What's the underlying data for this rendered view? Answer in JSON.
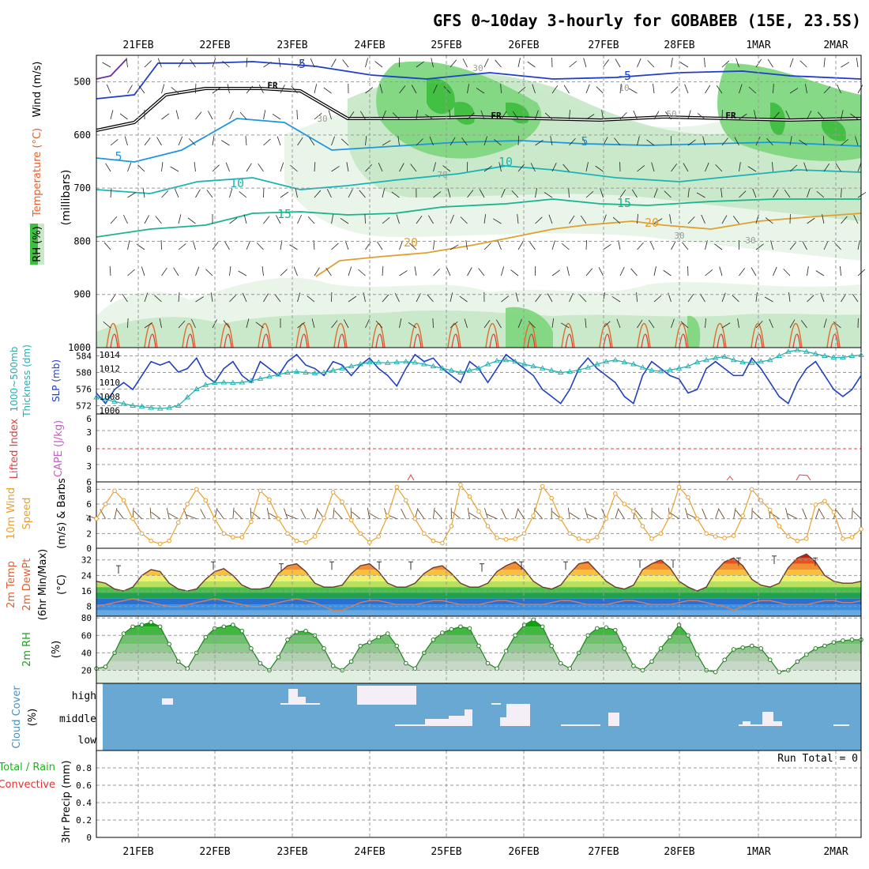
{
  "title": "GFS 0~10day 3-hourly for GOBABEB (15E, 23.5S)",
  "dates": [
    "21FEB",
    "22FEB",
    "23FEB",
    "24FEB",
    "25FEB",
    "26FEB",
    "27FEB",
    "28FEB",
    "1MAR",
    "2MAR"
  ],
  "colors": {
    "grid": "#9a9a9a",
    "axis": "#000000",
    "rh_dark": "#3fbf3f",
    "rh_mid": "#7fd77f",
    "rh_light": "#c8e8c8",
    "rh_pale": "#e8f4e8",
    "cloud_bg": "#6aa8d4",
    "cloud_fill": "#f4eef6",
    "slp": "#2040c0",
    "thick": "#20b0b0",
    "wind": "#e8a030"
  },
  "panels": {
    "upper": {
      "labels": [
        "RH (%)",
        "Temperature (°C)",
        "Wind (m/s)"
      ],
      "ylabel": "(millibars)",
      "yticks": [
        "500",
        "600",
        "700",
        "800",
        "900",
        "1000"
      ],
      "contour_labels": [
        "-5",
        "-5",
        "5",
        "5",
        "10",
        "10",
        "15",
        "15",
        "20",
        "20",
        "30",
        "30",
        "30",
        "30",
        "70",
        "FR",
        "FR",
        "FR",
        "10",
        "50"
      ]
    },
    "slp": {
      "labels": [
        "1000~500mb",
        "Thickness (dm)",
        "SLP (mb)"
      ],
      "left_ticks": [
        "584",
        "580",
        "576",
        "572"
      ],
      "right_ticks": [
        "1014",
        "1012",
        "1010",
        "1008",
        "1006"
      ]
    },
    "cape": {
      "labels": [
        "Lifted Index",
        "CAPE (J/kg)"
      ],
      "ticks": [
        "6",
        "3",
        "0",
        "3",
        "6"
      ]
    },
    "wind10": {
      "labels": [
        "10m Wind",
        "Speed",
        "(m/s) & Barbs"
      ],
      "ticks": [
        "8",
        "6",
        "4",
        "2",
        "0"
      ]
    },
    "temp2m": {
      "labels": [
        "2m Temp",
        "2m DewPt",
        "(6hr Min/Max)",
        "(°C)"
      ],
      "ticks": [
        "32",
        "24",
        "16",
        "8"
      ]
    },
    "rh2m": {
      "labels": [
        "2m RH",
        "(%)"
      ],
      "ticks": [
        "80",
        "60",
        "40",
        "20"
      ]
    },
    "cloud": {
      "labels": [
        "Cloud Cover",
        "(%)"
      ],
      "levels": [
        "high",
        "middle",
        "low"
      ]
    },
    "precip": {
      "labels": [
        "Total / Rain",
        "Convective",
        "3hr Precip (mm)"
      ],
      "ticks": [
        "0.8",
        "0.6",
        "0.4",
        "0.2",
        "0"
      ],
      "run_total": "Run Total = 0"
    }
  },
  "chart_data": [
    {
      "type": "line",
      "title": "SLP and 1000~500mb Thickness",
      "series": [
        {
          "name": "SLP (mb)",
          "values": [
            1008.5,
            1007,
            1009,
            1010,
            1009,
            1011,
            1013,
            1012.5,
            1013,
            1011.5,
            1012,
            1013.5,
            1011,
            1010,
            1012,
            1013,
            1011,
            1010,
            1013,
            1012,
            1011,
            1013,
            1014,
            1012.5,
            1012,
            1011,
            1013,
            1012.5,
            1011,
            1012.5,
            1013.5,
            1012,
            1011,
            1009.5,
            1012,
            1014,
            1013,
            1013.5,
            1012,
            1011,
            1010,
            1013,
            1012,
            1010,
            1012,
            1014,
            1013,
            1012,
            1011,
            1009,
            1008,
            1007,
            1009,
            1012,
            1013.5,
            1012,
            1011,
            1010,
            1008,
            1007,
            1011,
            1013,
            1012,
            1011,
            1010.5,
            1008.5,
            1009,
            1012,
            1013,
            1012,
            1011,
            1011,
            1013.5,
            1012,
            1010,
            1008,
            1007,
            1010,
            1012,
            1013,
            1011,
            1009,
            1008,
            1009,
            1011
          ]
        },
        {
          "name": "Thickness (dm)",
          "values": [
            574,
            573.5,
            573,
            572.5,
            572,
            571.8,
            571.5,
            571.3,
            571.5,
            572,
            574,
            576,
            577,
            577.5,
            577.6,
            577.5,
            577.6,
            578,
            578.5,
            579,
            579.5,
            580,
            580.2,
            580,
            579.8,
            580,
            580.5,
            581,
            581.5,
            582,
            582.5,
            582.4,
            582.3,
            582.5,
            582.6,
            582.4,
            582,
            581.5,
            581,
            580.5,
            580,
            580.5,
            581,
            582,
            582.8,
            583,
            582.6,
            582,
            581.5,
            581,
            580.5,
            580,
            580.2,
            580.6,
            581.2,
            582,
            582.6,
            583,
            582.5,
            582,
            581.2,
            580.5,
            580.3,
            580.6,
            581,
            581.5,
            582.5,
            583,
            583.5,
            583.8,
            583,
            582.5,
            582.3,
            582.6,
            583,
            584,
            585,
            585.4,
            585,
            584.5,
            584,
            583.6,
            583.6,
            584,
            584.2
          ]
        }
      ],
      "left_ylim": [
        570,
        586
      ],
      "right_ylim": [
        1005.5,
        1015
      ]
    },
    {
      "type": "line",
      "title": "Lifted Index and CAPE",
      "series": [
        {
          "name": "Lifted Index",
          "values": [
            0,
            0,
            0,
            0,
            0,
            0,
            0,
            0,
            0,
            0
          ]
        }
      ],
      "ylim": [
        -6,
        6
      ]
    },
    {
      "type": "line",
      "title": "10m Wind Speed",
      "series": [
        {
          "name": "10m Wind Speed (m/s)",
          "values": [
            4,
            6,
            7.8,
            6.5,
            4,
            2,
            1,
            0.6,
            1,
            3.5,
            6,
            8,
            6.5,
            4,
            2,
            1.5,
            1.5,
            3.6,
            7.8,
            6.6,
            4,
            2,
            1,
            0.8,
            1.6,
            4.1,
            7.6,
            6.3,
            3.8,
            2,
            0.8,
            1.6,
            4.4,
            8.3,
            6.5,
            4,
            2,
            1,
            0.7,
            3,
            8.6,
            7,
            5,
            3,
            1.4,
            1.2,
            1.3,
            2,
            4.4,
            8.4,
            6.8,
            4,
            2,
            1.3,
            1,
            1.5,
            4,
            7.4,
            6,
            5,
            3,
            1.3,
            2,
            4.4,
            8.3,
            6.9,
            4,
            2,
            1.6,
            1.4,
            1.7,
            4.4,
            8,
            6.5,
            5.2,
            3,
            1.6,
            1,
            1.3,
            5.9,
            6.4,
            4.9,
            1.3,
            1.5,
            2.6
          ]
        }
      ],
      "ylim": [
        0,
        9
      ]
    },
    {
      "type": "area",
      "title": "2m Temp",
      "series": [
        {
          "name": "2m Temp (°C)",
          "values": [
            21,
            20,
            17,
            16,
            18,
            24,
            27,
            26,
            20,
            17,
            16,
            17,
            22,
            26,
            27.5,
            24,
            19,
            17,
            17,
            18,
            25,
            29,
            30,
            26,
            20,
            18,
            18,
            19,
            25,
            29,
            30,
            26,
            20,
            18,
            18,
            20,
            25,
            28,
            29,
            25,
            20,
            18,
            18,
            20,
            26,
            29,
            31,
            27,
            21,
            18,
            17,
            19,
            25,
            30,
            31,
            26,
            21,
            18,
            17,
            19,
            27,
            30,
            32,
            28,
            21,
            18,
            16,
            18,
            26,
            31,
            33,
            29,
            22,
            19,
            18,
            20,
            28,
            33,
            35,
            31,
            24,
            21,
            20,
            20,
            21
          ]
        },
        {
          "name": "2m DewPt (°C)",
          "values": [
            8,
            9,
            10,
            11,
            12,
            11,
            10,
            9,
            8,
            8,
            9,
            10,
            11,
            12,
            11,
            10,
            9,
            8,
            8,
            9,
            10,
            11,
            12,
            11,
            10,
            8,
            6,
            6,
            8,
            10,
            11,
            11,
            10,
            9,
            9,
            9,
            10,
            11,
            11,
            10,
            9,
            9,
            9,
            10,
            11,
            11,
            10,
            9,
            9,
            9,
            10,
            11,
            11,
            10,
            9,
            9,
            9,
            10,
            11,
            11,
            10,
            9,
            9,
            9,
            10,
            11,
            11,
            10,
            9,
            8,
            6,
            8,
            10,
            11,
            11,
            10,
            9,
            9,
            9,
            10,
            11,
            11,
            10,
            10,
            11
          ]
        }
      ],
      "ylim": [
        3,
        38
      ]
    },
    {
      "type": "area",
      "title": "2m RH",
      "series": [
        {
          "name": "2m RH (%)",
          "values": [
            22,
            24,
            40,
            62,
            70,
            72,
            75,
            70,
            50,
            30,
            22,
            40,
            58,
            68,
            70,
            72,
            65,
            45,
            28,
            20,
            35,
            55,
            64,
            65,
            60,
            45,
            25,
            20,
            30,
            48,
            52,
            58,
            62,
            48,
            28,
            22,
            40,
            55,
            63,
            67,
            70,
            68,
            48,
            28,
            22,
            42,
            60,
            72,
            78,
            70,
            48,
            28,
            22,
            40,
            60,
            68,
            69,
            66,
            45,
            25,
            20,
            30,
            45,
            58,
            72,
            60,
            38,
            20,
            18,
            32,
            44,
            46,
            48,
            45,
            32,
            18,
            20,
            30,
            38,
            45,
            48,
            52,
            54,
            55,
            55
          ]
        }
      ],
      "ylim": [
        5,
        82
      ]
    },
    {
      "type": "bar",
      "title": "3hr Precip",
      "series": [
        {
          "name": "Total / Rain",
          "values": [
            0,
            0,
            0,
            0,
            0,
            0,
            0,
            0,
            0,
            0
          ]
        },
        {
          "name": "Convective",
          "values": [
            0,
            0,
            0,
            0,
            0,
            0,
            0,
            0,
            0,
            0
          ]
        }
      ],
      "ylim": [
        0,
        1
      ]
    }
  ]
}
